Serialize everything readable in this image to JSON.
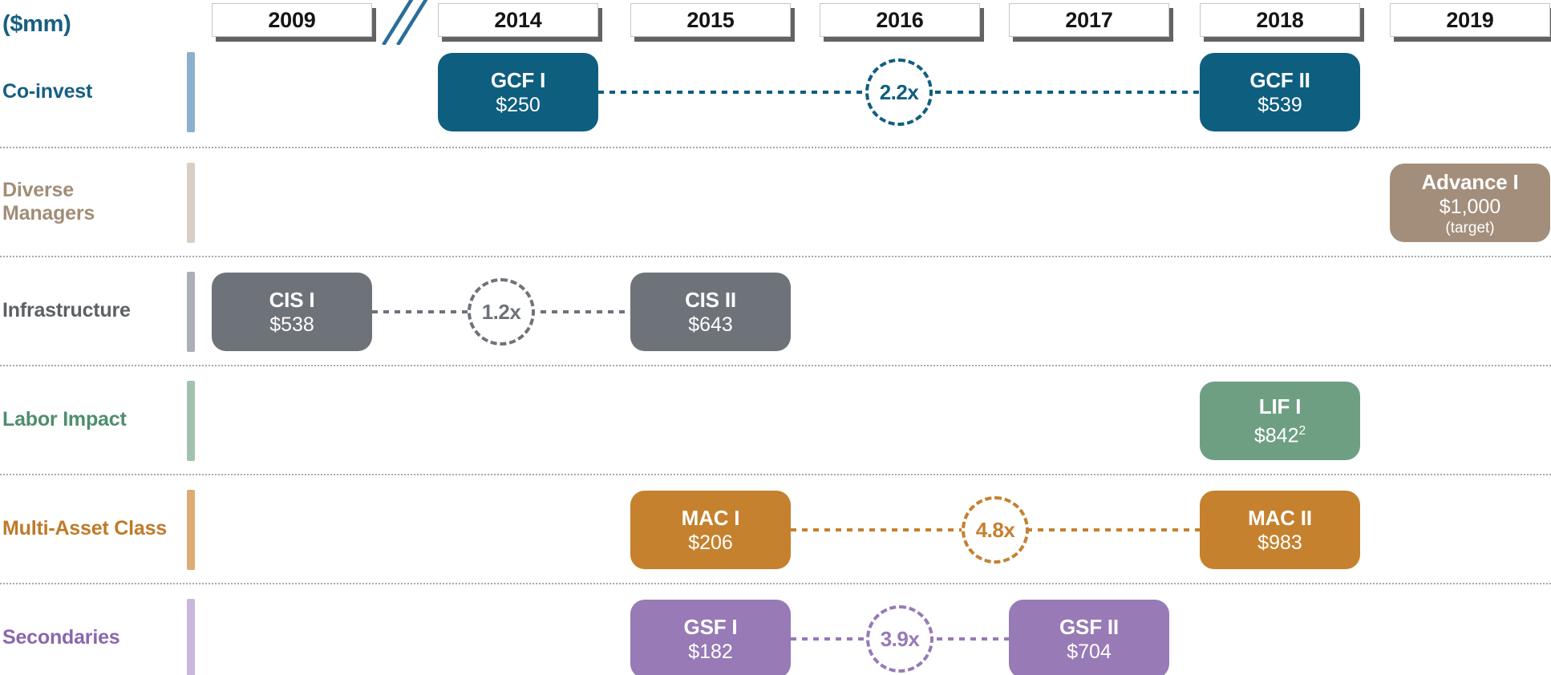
{
  "units_label": "($mm)",
  "timeline": {
    "years": [
      "2009",
      "2014",
      "2015",
      "2016",
      "2017",
      "2018",
      "2019"
    ],
    "break_after_year": "2009"
  },
  "palette": {
    "year_tab_background": "#ffffff",
    "year_tab_shadow": "#636363",
    "year_text": "#151515",
    "axis_break": "#2a6d99",
    "row_separator": "#a9a9a9"
  },
  "rows": [
    {
      "label": "Co-invest",
      "colors": {
        "accent": "#0e5e7f",
        "label": "#175f82",
        "bar": "#8cb0cc"
      },
      "funds": [
        {
          "name": "GCF I",
          "amount": "$250",
          "year": "2014"
        },
        {
          "name": "GCF II",
          "amount": "$539",
          "year": "2018"
        }
      ],
      "multiplier": {
        "value": "2.2x"
      }
    },
    {
      "label": "Diverse\nManagers",
      "colors": {
        "accent": "#a28e7a",
        "label": "#a18d77",
        "bar": "#d9cec3"
      },
      "funds": [
        {
          "name": "Advance I",
          "amount": "$1,000",
          "note": "(target)",
          "year": "2019"
        }
      ]
    },
    {
      "label": "Infrastructure",
      "colors": {
        "accent": "#6e737a",
        "label": "#5b6167",
        "bar": "#acb0b6"
      },
      "funds": [
        {
          "name": "CIS I",
          "amount": "$538",
          "year": "2009"
        },
        {
          "name": "CIS II",
          "amount": "$643",
          "year": "2015"
        }
      ],
      "multiplier": {
        "value": "1.2x"
      }
    },
    {
      "label": "Labor Impact",
      "colors": {
        "accent": "#6e9f83",
        "label": "#4f8d6e",
        "bar": "#a1c2af"
      },
      "funds": [
        {
          "name": "LIF I",
          "amount": "$842",
          "amount_sup": "2",
          "year": "2018"
        }
      ]
    },
    {
      "label": "Multi-Asset Class",
      "colors": {
        "accent": "#c5812e",
        "label": "#bf7a28",
        "bar": "#deab74"
      },
      "funds": [
        {
          "name": "MAC I",
          "amount": "$206",
          "year": "2015"
        },
        {
          "name": "MAC II",
          "amount": "$983",
          "year": "2018"
        }
      ],
      "multiplier": {
        "value": "4.8x"
      }
    },
    {
      "label": "Secondaries",
      "colors": {
        "accent": "#977ab6",
        "label": "#8a67ac",
        "bar": "#c8b7dc"
      },
      "funds": [
        {
          "name": "GSF I",
          "amount": "$182",
          "year": "2015"
        },
        {
          "name": "GSF II",
          "amount": "$704",
          "year": "2017"
        }
      ],
      "multiplier": {
        "value": "3.9x"
      }
    }
  ]
}
